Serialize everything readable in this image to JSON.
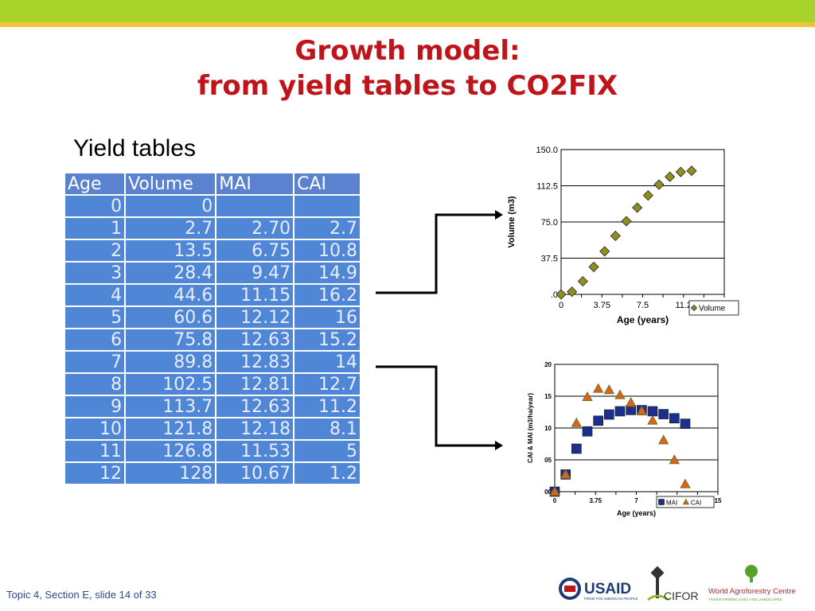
{
  "slide": {
    "title_line1": "Growth model:",
    "title_line2": "from yield tables to CO2FIX",
    "subtitle": "Yield tables",
    "footer": "Topic 4, Section E, slide 14 of 33"
  },
  "table": {
    "headers": [
      "Age",
      "Volume",
      "MAI",
      "CAI"
    ],
    "rows": [
      [
        "0",
        "0",
        "",
        ""
      ],
      [
        "1",
        "2.7",
        "2.70",
        "2.7"
      ],
      [
        "2",
        "13.5",
        "6.75",
        "10.8"
      ],
      [
        "3",
        "28.4",
        "9.47",
        "14.9"
      ],
      [
        "4",
        "44.6",
        "11.15",
        "16.2"
      ],
      [
        "5",
        "60.6",
        "12.12",
        "16"
      ],
      [
        "6",
        "75.8",
        "12.63",
        "15.2"
      ],
      [
        "7",
        "89.8",
        "12.83",
        "14"
      ],
      [
        "8",
        "102.5",
        "12.81",
        "12.7"
      ],
      [
        "9",
        "113.7",
        "12.63",
        "11.2"
      ],
      [
        "10",
        "121.8",
        "12.18",
        "8.1"
      ],
      [
        "11",
        "126.8",
        "11.53",
        "5"
      ],
      [
        "12",
        "128",
        "10.67",
        "1.2"
      ]
    ]
  },
  "chart_data": [
    {
      "type": "scatter",
      "title": "",
      "xlabel": "Age (years)",
      "ylabel": "Volume (m3)",
      "xlim": [
        0,
        15
      ],
      "ylim": [
        0,
        150
      ],
      "x_tick_labels": [
        "0",
        "3.75",
        "7.5",
        "11.2"
      ],
      "y_tick_labels": [
        ".0",
        "37.5",
        "75.0",
        "112.5",
        "150.0"
      ],
      "grid": true,
      "legend": "bottom-right",
      "series": [
        {
          "name": "Volume",
          "marker": "diamond",
          "color": "#8f8f1e",
          "x": [
            0,
            1,
            2,
            3,
            4,
            5,
            6,
            7,
            8,
            9,
            10,
            11,
            12
          ],
          "y": [
            0,
            2.7,
            13.5,
            28.4,
            44.6,
            60.6,
            75.8,
            89.8,
            102.5,
            113.7,
            121.8,
            126.8,
            128
          ]
        }
      ]
    },
    {
      "type": "scatter",
      "title": "",
      "xlabel": "Age (years)",
      "ylabel": "CAI & MAI (m3/ha/year)",
      "xlim": [
        0,
        15
      ],
      "ylim": [
        0,
        20
      ],
      "x_tick_labels": [
        "0",
        "3.75",
        "7",
        "15"
      ],
      "y_tick_labels": [
        "00",
        "05",
        "10",
        "15",
        "20"
      ],
      "grid": true,
      "legend": "bottom-right",
      "series": [
        {
          "name": "MAI",
          "marker": "square",
          "color": "#1c2f8c",
          "x": [
            0,
            1,
            2,
            3,
            4,
            5,
            6,
            7,
            8,
            9,
            10,
            11,
            12
          ],
          "y": [
            0,
            2.7,
            6.75,
            9.47,
            11.15,
            12.12,
            12.63,
            12.83,
            12.81,
            12.63,
            12.18,
            11.53,
            10.67
          ]
        },
        {
          "name": "CAI",
          "marker": "triangle",
          "color": "#d9631e",
          "x": [
            0,
            1,
            2,
            3,
            4,
            5,
            6,
            7,
            8,
            9,
            10,
            11,
            12
          ],
          "y": [
            0,
            2.7,
            10.8,
            14.9,
            16.2,
            16,
            15.2,
            14,
            12.7,
            11.2,
            8.1,
            5,
            1.2
          ]
        }
      ]
    }
  ],
  "logos": {
    "usaid": "USAID",
    "usaid_sub": "FROM THE AMERICAN PEOPLE",
    "cifor": "CIFOR",
    "icraf": "World Agroforestry Centre",
    "icraf_sub": "TRANSFORMING LIVES AND LANDSCAPES"
  },
  "colors": {
    "topbar": "#a8d32a",
    "topline": "#f3c23b",
    "title": "#c0141b",
    "table_header": "#5b82cf",
    "table_cell": "#4f86d6"
  }
}
